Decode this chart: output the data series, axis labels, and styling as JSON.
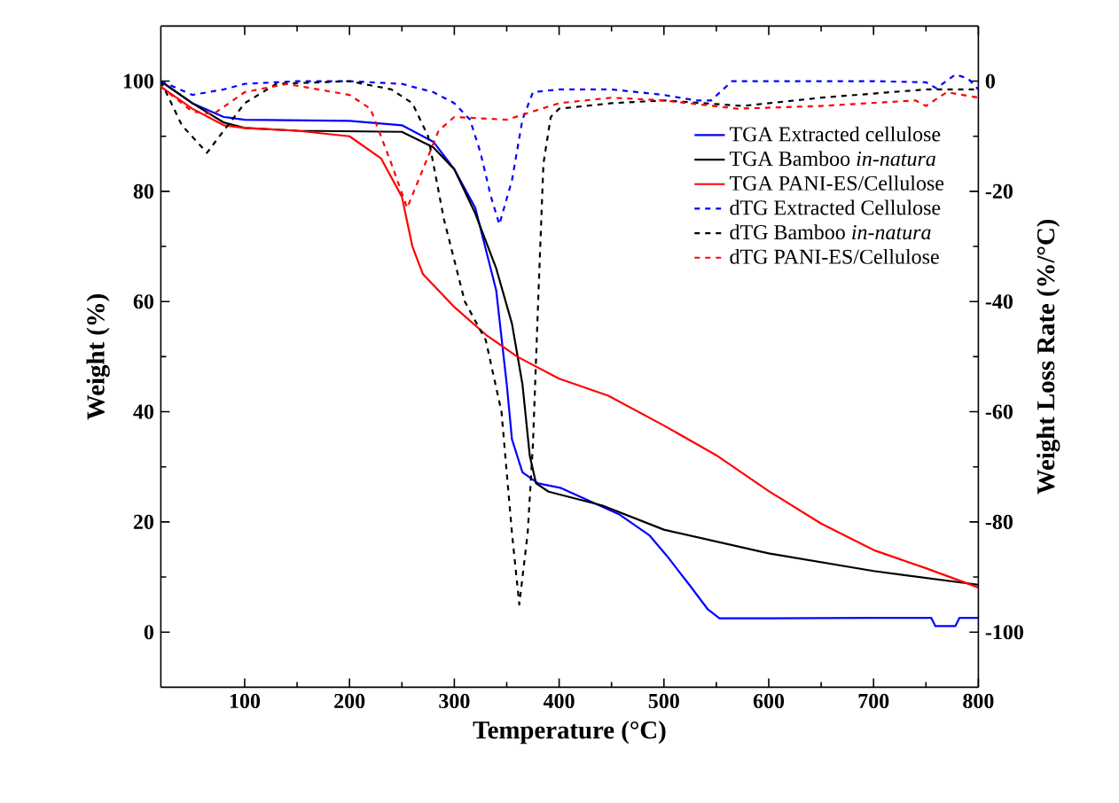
{
  "chart_data": {
    "type": "line",
    "xlabel": "Temperature (°C)",
    "ylabel": "Weight (%)",
    "y2label": "Weight Loss Rate (%/°C)",
    "xlim": [
      20,
      800
    ],
    "xticks": [
      100,
      200,
      300,
      400,
      500,
      600,
      700,
      800
    ],
    "ylim": [
      -10,
      110
    ],
    "yticks": [
      0,
      20,
      40,
      60,
      80,
      100
    ],
    "y2lim": [
      -110,
      10
    ],
    "y2ticks": [
      -100,
      -80,
      -60,
      -40,
      -20,
      0
    ],
    "legend": "top right",
    "grid": false,
    "marker": "none",
    "series": [
      {
        "name": "TGA Extracted cellulose",
        "color": "#0000ff",
        "line_style": "solid",
        "axis": "y",
        "x": [
          20,
          50,
          80,
          100,
          200,
          250,
          280,
          300,
          320,
          340,
          350,
          355,
          365,
          380,
          401,
          458,
          486,
          503,
          525,
          542,
          553,
          600,
          700,
          755,
          759,
          778,
          782,
          800
        ],
        "values": [
          100,
          96,
          93.5,
          93,
          92.8,
          92,
          89,
          84,
          77,
          62,
          45,
          35,
          29,
          27,
          26.2,
          21.3,
          17.6,
          13.8,
          8.4,
          4.1,
          2.5,
          2.5,
          2.6,
          2.6,
          1.1,
          1.1,
          2.6,
          2.6
        ]
      },
      {
        "name": "TGA Bamboo *in-natura*",
        "color": "#000000",
        "line_style": "solid",
        "axis": "y",
        "x": [
          20,
          50,
          80,
          100,
          150,
          250,
          280,
          300,
          320,
          340,
          355,
          365,
          372,
          378,
          390,
          441,
          500,
          600,
          700,
          800
        ],
        "values": [
          100,
          96,
          92.5,
          91.5,
          91,
          90.8,
          88,
          84,
          76,
          66,
          56,
          45,
          32,
          27,
          25.5,
          23,
          18.6,
          14.3,
          11.1,
          8.6
        ]
      },
      {
        "name": "TGA PANI-ES/Cellulose",
        "color": "#ff0000",
        "line_style": "solid",
        "axis": "y",
        "x": [
          20,
          50,
          80,
          100,
          150,
          200,
          230,
          250,
          260,
          270,
          300,
          330,
          360,
          400,
          447,
          500,
          550,
          600,
          650,
          700,
          750,
          800
        ],
        "values": [
          99,
          95,
          92,
          91.5,
          91,
          90,
          86,
          79,
          70,
          65,
          59,
          54,
          50,
          46,
          42.9,
          37.5,
          32.1,
          25.6,
          19.7,
          14.9,
          11.6,
          8.1
        ]
      },
      {
        "name": "dTG Extracted Cellulose",
        "color": "#0000ff",
        "line_style": "dashed",
        "axis": "y2",
        "x": [
          20,
          50,
          80,
          100,
          150,
          200,
          250,
          280,
          300,
          315,
          325,
          335,
          343,
          355,
          365,
          375,
          400,
          450,
          500,
          530,
          545,
          565,
          600,
          700,
          750,
          760,
          778,
          790,
          800
        ],
        "values": [
          0,
          -2.5,
          -1.5,
          -0.5,
          0,
          0,
          -0.5,
          -2,
          -4,
          -7,
          -13,
          -21,
          -26,
          -18,
          -7,
          -2,
          -1.5,
          -1.5,
          -2.5,
          -3.5,
          -3.5,
          0,
          0,
          0,
          -0.2,
          -1.3,
          1.2,
          0.5,
          -1.5
        ]
      },
      {
        "name": "dTG Bamboo *in-natura*",
        "color": "#000000",
        "line_style": "dashed",
        "axis": "y2",
        "x": [
          20,
          40,
          64,
          80,
          100,
          130,
          200,
          240,
          260,
          275,
          290,
          310,
          330,
          345,
          355,
          362,
          370,
          375,
          380,
          385,
          392,
          400,
          450,
          500,
          575,
          650,
          750,
          800
        ],
        "values": [
          0,
          -8,
          -13,
          -9,
          -4,
          -0.5,
          0,
          -1.5,
          -4,
          -10,
          -25,
          -40,
          -47,
          -60,
          -82,
          -95,
          -82,
          -66,
          -40,
          -15,
          -6.5,
          -5,
          -4,
          -3.5,
          -4.5,
          -3,
          -1.5,
          -1.5
        ]
      },
      {
        "name": "dTG PANI-ES/Cellulose",
        "color": "#ff0000",
        "line_style": "dashed",
        "axis": "y2",
        "x": [
          20,
          50,
          70,
          100,
          140,
          200,
          220,
          240,
          255,
          270,
          285,
          300,
          350,
          400,
          450,
          500,
          570,
          650,
          740,
          750,
          770,
          800
        ],
        "values": [
          -1,
          -5.5,
          -6,
          -2,
          -0.5,
          -2.5,
          -5,
          -15,
          -23,
          -16,
          -9,
          -6.5,
          -7,
          -4,
          -3,
          -3.5,
          -5,
          -4.5,
          -3.5,
          -4.5,
          -2,
          -3
        ]
      }
    ]
  }
}
